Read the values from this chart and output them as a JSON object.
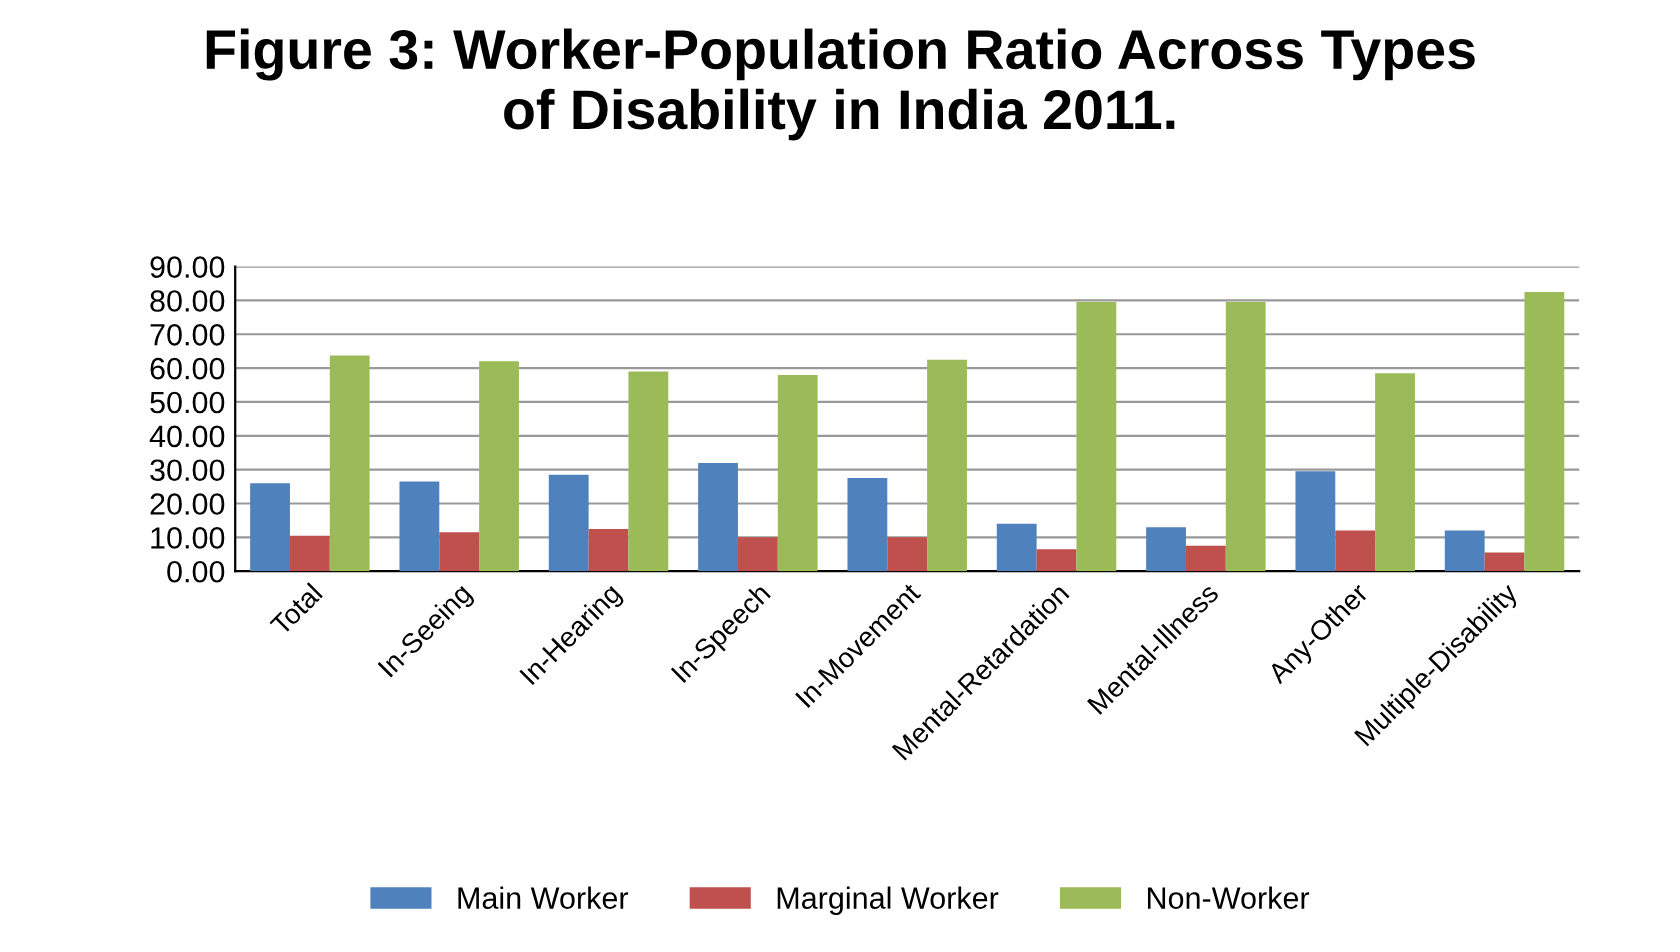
{
  "chart_data": {
    "type": "bar",
    "title": "Figure 3: Worker-Population Ratio Across Types\nof Disability in India 2011.",
    "categories": [
      "Total",
      "In-Seeing",
      "In-Hearing",
      "In-Speech",
      "In-Movement",
      "Mental-Retardation",
      "Mental-Illness",
      "Any-Other",
      "Multiple-Disability"
    ],
    "series": [
      {
        "name": "Main Worker",
        "color": "#4f81bd",
        "values": [
          26.0,
          26.5,
          28.5,
          32.0,
          27.5,
          14.0,
          13.0,
          29.5,
          12.0
        ]
      },
      {
        "name": "Marginal Worker",
        "color": "#c0504d",
        "values": [
          10.5,
          11.5,
          12.5,
          10.0,
          10.0,
          6.5,
          7.5,
          12.0,
          5.5
        ]
      },
      {
        "name": "Non-Worker",
        "color": "#9bbb59",
        "values": [
          63.7,
          62.0,
          59.0,
          58.0,
          62.5,
          79.5,
          79.5,
          58.5,
          82.5
        ]
      }
    ],
    "ylim": [
      0,
      90
    ],
    "yticks": [
      {
        "value": 0,
        "label": "0.00"
      },
      {
        "value": 10,
        "label": "10.00"
      },
      {
        "value": 20,
        "label": "20.00"
      },
      {
        "value": 30,
        "label": "30.00"
      },
      {
        "value": 40,
        "label": "40.00"
      },
      {
        "value": 50,
        "label": "50.00"
      },
      {
        "value": 60,
        "label": "60.00"
      },
      {
        "value": 70,
        "label": "70.00"
      },
      {
        "value": 80,
        "label": "80.00"
      },
      {
        "value": 90,
        "label": "90.00"
      }
    ],
    "grid": "y",
    "legend": "bottom"
  }
}
